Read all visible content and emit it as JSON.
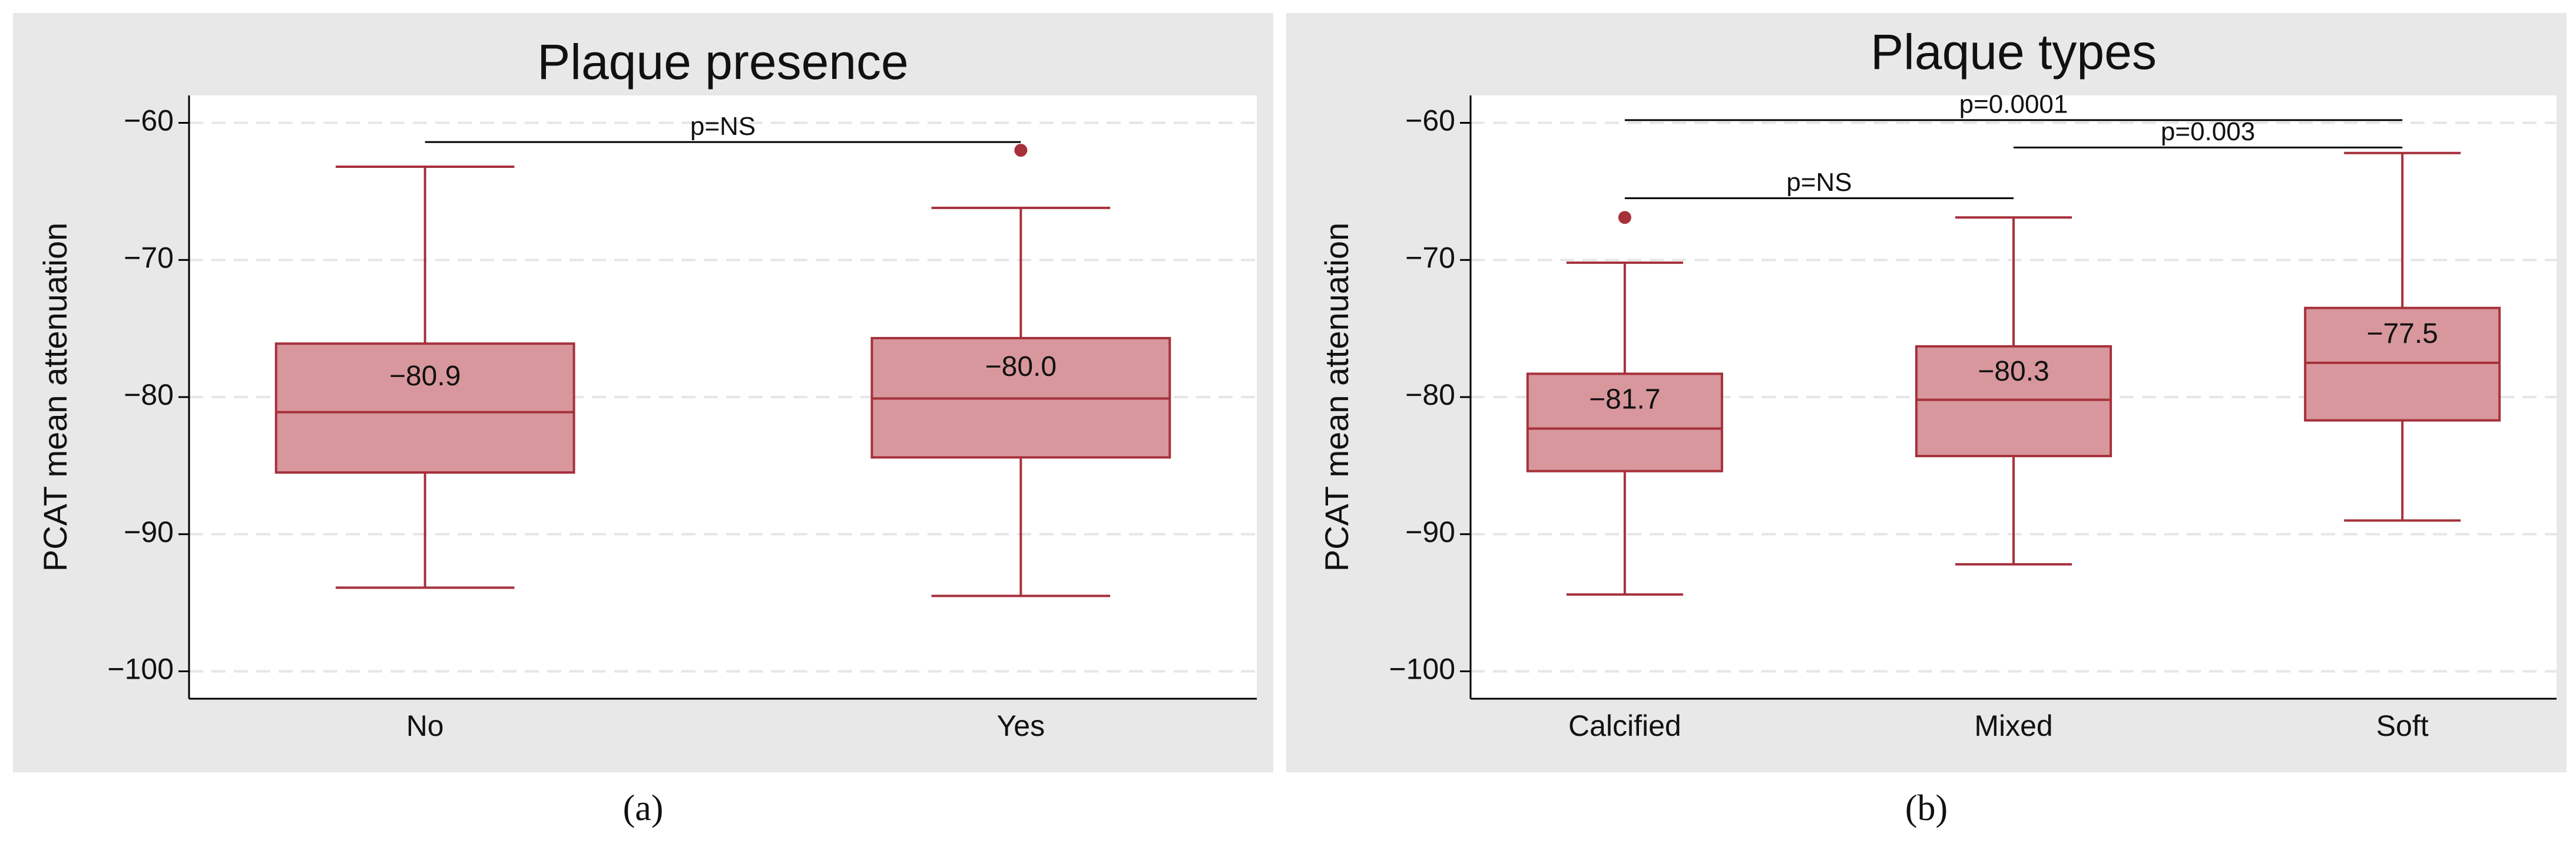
{
  "chart_data": [
    {
      "type": "box",
      "title": "Plaque presence",
      "ylabel": "PCAT mean attenuation",
      "caption": "(a)",
      "categories": [
        "No",
        "Yes"
      ],
      "boxes": [
        {
          "whisker_low": -93.9,
          "q1": -85.5,
          "median": -81.1,
          "q3": -76.1,
          "whisker_high": -63.2,
          "outliers": []
        },
        {
          "whisker_low": -94.5,
          "q1": -84.4,
          "median": -80.1,
          "q3": -75.7,
          "whisker_high": -66.2,
          "outliers": [
            -62.0
          ]
        }
      ],
      "values": [
        -80.9,
        -80.0
      ],
      "value_labels": [
        "−80.9",
        "−80.0"
      ],
      "annotations": [
        {
          "text": "p=NS",
          "from": 0,
          "to": 1,
          "y": -61.4
        }
      ],
      "color": "#d8979c",
      "edge_color": "#a6313b",
      "ylim": [
        -102,
        -58
      ],
      "yticks": [
        {
          "value": -60,
          "label": "−60"
        },
        {
          "value": -70,
          "label": "−70"
        },
        {
          "value": -80,
          "label": "−80"
        },
        {
          "value": -90,
          "label": "−90"
        },
        {
          "value": -100,
          "label": "−100"
        }
      ],
      "grid": true
    },
    {
      "type": "box",
      "title": "Plaque types",
      "ylabel": "PCAT mean attenuation",
      "caption": "(b)",
      "categories": [
        "Calcified",
        "Mixed",
        "Soft"
      ],
      "boxes": [
        {
          "whisker_low": -94.4,
          "q1": -85.4,
          "median": -82.3,
          "q3": -78.3,
          "whisker_high": -70.2,
          "outliers": [
            -66.9
          ]
        },
        {
          "whisker_low": -92.2,
          "q1": -84.3,
          "median": -80.2,
          "q3": -76.3,
          "whisker_high": -66.9,
          "outliers": []
        },
        {
          "whisker_low": -89.0,
          "q1": -81.7,
          "median": -77.5,
          "q3": -73.5,
          "whisker_high": -62.2,
          "outliers": []
        }
      ],
      "values": [
        -81.7,
        -80.3,
        -77.5
      ],
      "value_labels": [
        "−81.7",
        "−80.3",
        "−77.5"
      ],
      "annotations": [
        {
          "text": "p=0.0001",
          "from": 0,
          "to": 2,
          "y": -59.8
        },
        {
          "text": "p=0.003",
          "from": 1,
          "to": 2,
          "y": -61.8
        },
        {
          "text": "p=NS",
          "from": 0,
          "to": 1,
          "y": -65.5
        }
      ],
      "color": "#d8979c",
      "edge_color": "#a6313b",
      "ylim": [
        -102,
        -58
      ],
      "yticks": [
        {
          "value": -60,
          "label": "−60"
        },
        {
          "value": -70,
          "label": "−70"
        },
        {
          "value": -80,
          "label": "−80"
        },
        {
          "value": -90,
          "label": "−90"
        },
        {
          "value": -100,
          "label": "−100"
        }
      ],
      "grid": true
    }
  ]
}
